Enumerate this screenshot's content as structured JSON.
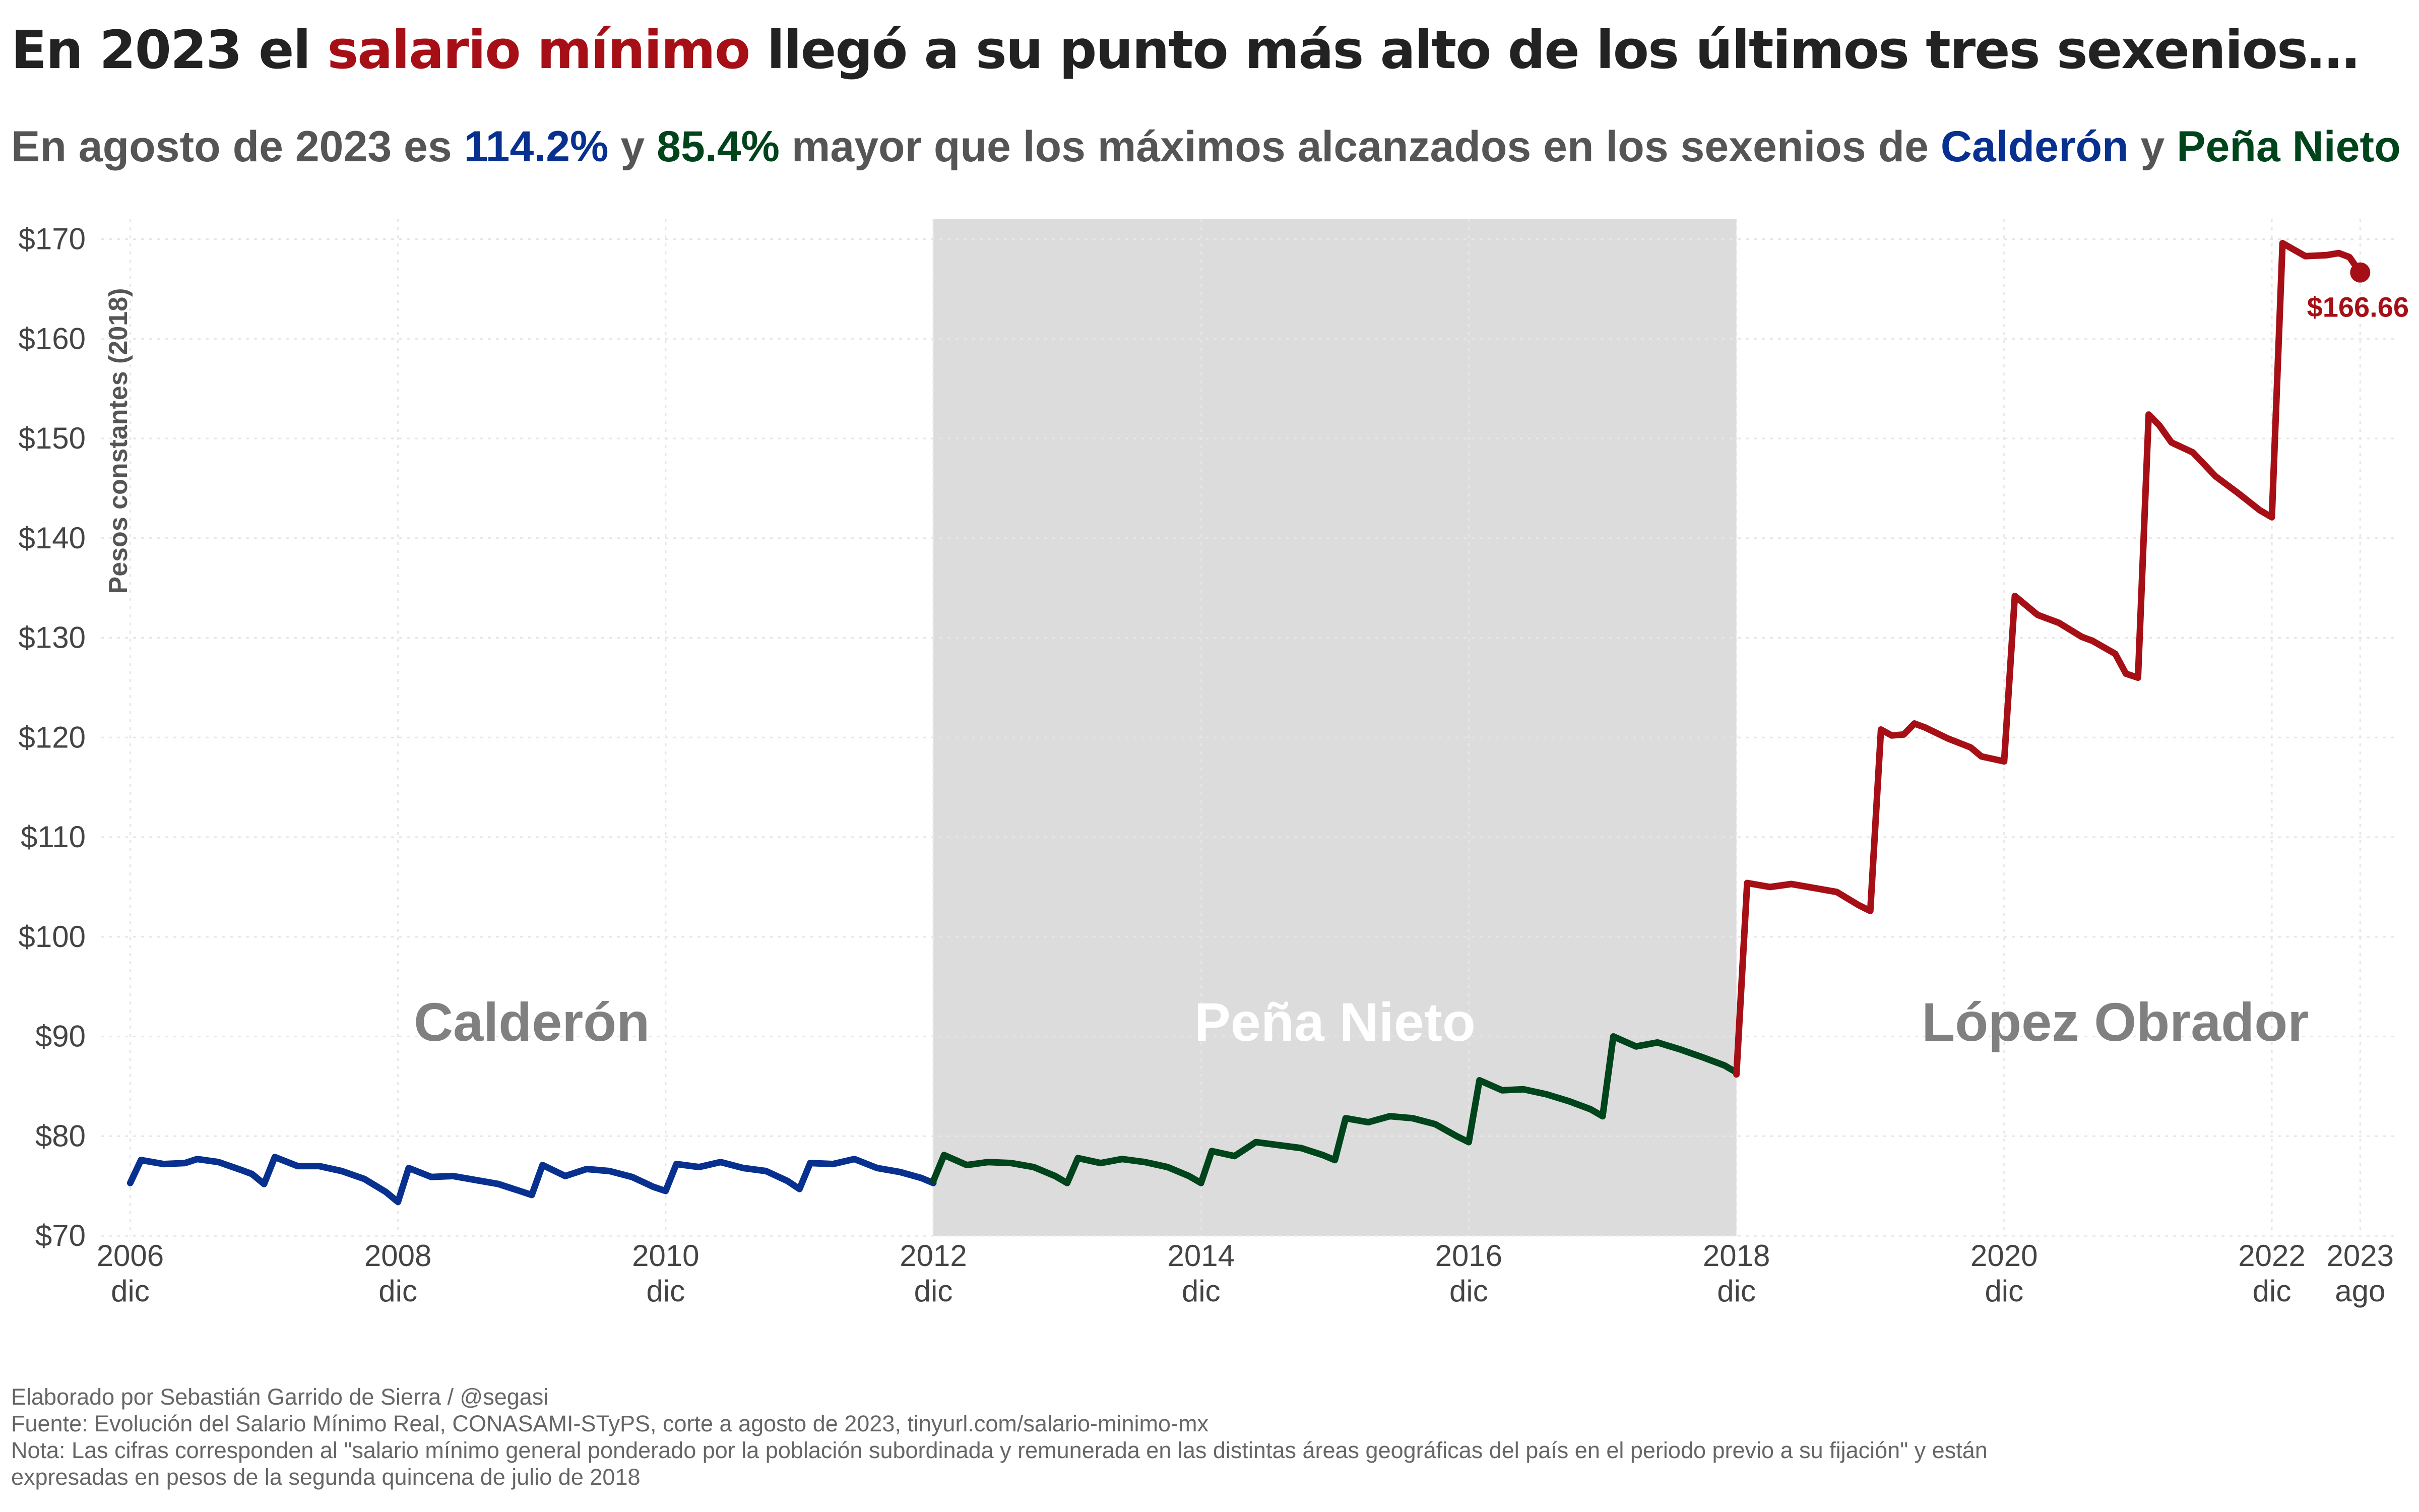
{
  "title": {
    "prefix": "En 2023 el ",
    "highlight": "salario mínimo",
    "suffix": " llegó a su punto más alto de los últimos tres sexenios…",
    "highlight_color": "#a50f15"
  },
  "subtitle": {
    "p1": "En agosto de 2023 es ",
    "pct_calderon": "114.2%",
    "p2": " y ",
    "pct_pena": "85.4%",
    "p3": " mayor que los máximos alcanzados en los sexenios de ",
    "name_calderon": "Calderón",
    "p4": " y ",
    "name_pena": "Peña Nieto"
  },
  "footer": {
    "credit": "Elaborado por Sebastián Garrido de Sierra / @segasi",
    "source": "Fuente: Evolución del Salario Mínimo Real, CONASAMI-STyPS, corte a agosto de 2023, tinyurl.com/salario-minimo-mx",
    "note1": "Nota: Las cifras corresponden al \"salario mínimo general ponderado por la población subordinada y remunerada en las distintas áreas geográficas del país en el periodo previo a su fijación\" y están",
    "note2": "expresadas en pesos de la segunda quincena de julio de 2018"
  },
  "chart_data": {
    "type": "line",
    "ylabel": "Pesos constantes (2018)",
    "ylim": [
      70,
      172
    ],
    "xlim": [
      2006.7,
      2023.85
    ],
    "y_ticks": [
      70,
      80,
      90,
      100,
      110,
      120,
      130,
      140,
      150,
      160,
      170
    ],
    "y_tick_labels": [
      "$70",
      "$80",
      "$90",
      "$100",
      "$110",
      "$120",
      "$130",
      "$140",
      "$150",
      "$160",
      "$170"
    ],
    "x_ticks": [
      {
        "x": 2006.92,
        "top": "2006",
        "bottom": "dic"
      },
      {
        "x": 2008.92,
        "top": "2008",
        "bottom": "dic"
      },
      {
        "x": 2010.92,
        "top": "2010",
        "bottom": "dic"
      },
      {
        "x": 2012.92,
        "top": "2012",
        "bottom": "dic"
      },
      {
        "x": 2014.92,
        "top": "2014",
        "bottom": "dic"
      },
      {
        "x": 2016.92,
        "top": "2016",
        "bottom": "dic"
      },
      {
        "x": 2018.92,
        "top": "2018",
        "bottom": "dic"
      },
      {
        "x": 2020.92,
        "top": "2020",
        "bottom": "dic"
      },
      {
        "x": 2022.92,
        "top": "2022",
        "bottom": "dic"
      },
      {
        "x": 2023.58,
        "top": "2023",
        "bottom": "ago"
      }
    ],
    "grid": true,
    "shaded_period": {
      "from": 2012.92,
      "to": 2018.92,
      "color": "#dcdcdc"
    },
    "period_labels": [
      {
        "text": "Calderón",
        "x": 2009.92,
        "y": 91.5,
        "color": "#808080"
      },
      {
        "text": "Peña Nieto",
        "x": 2015.92,
        "y": 91.5,
        "color": "#ffffff"
      },
      {
        "text": "López Obrador",
        "x": 2021.75,
        "y": 91.5,
        "color": "#808080"
      }
    ],
    "series": [
      {
        "name": "Calderón",
        "color": "#08308f",
        "points": [
          [
            2006.92,
            75.3
          ],
          [
            2007.0,
            77.6
          ],
          [
            2007.17,
            77.2
          ],
          [
            2007.33,
            77.3
          ],
          [
            2007.42,
            77.7
          ],
          [
            2007.58,
            77.4
          ],
          [
            2007.75,
            76.6
          ],
          [
            2007.83,
            76.2
          ],
          [
            2007.92,
            75.2
          ],
          [
            2008.0,
            77.9
          ],
          [
            2008.17,
            77.0
          ],
          [
            2008.33,
            77.0
          ],
          [
            2008.5,
            76.5
          ],
          [
            2008.67,
            75.7
          ],
          [
            2008.83,
            74.4
          ],
          [
            2008.92,
            73.4
          ],
          [
            2009.0,
            76.8
          ],
          [
            2009.17,
            75.9
          ],
          [
            2009.33,
            76.0
          ],
          [
            2009.5,
            75.6
          ],
          [
            2009.67,
            75.2
          ],
          [
            2009.83,
            74.5
          ],
          [
            2009.92,
            74.1
          ],
          [
            2010.0,
            77.1
          ],
          [
            2010.17,
            76.0
          ],
          [
            2010.33,
            76.7
          ],
          [
            2010.5,
            76.5
          ],
          [
            2010.67,
            75.9
          ],
          [
            2010.83,
            74.9
          ],
          [
            2010.92,
            74.5
          ],
          [
            2011.0,
            77.2
          ],
          [
            2011.17,
            76.9
          ],
          [
            2011.33,
            77.4
          ],
          [
            2011.5,
            76.8
          ],
          [
            2011.67,
            76.5
          ],
          [
            2011.83,
            75.5
          ],
          [
            2011.92,
            74.7
          ],
          [
            2012.0,
            77.3
          ],
          [
            2012.17,
            77.2
          ],
          [
            2012.33,
            77.7
          ],
          [
            2012.5,
            76.8
          ],
          [
            2012.67,
            76.4
          ],
          [
            2012.83,
            75.8
          ],
          [
            2012.92,
            75.3
          ]
        ]
      },
      {
        "name": "Peña Nieto",
        "color": "#00441b",
        "points": [
          [
            2012.92,
            75.5
          ],
          [
            2013.0,
            78.1
          ],
          [
            2013.17,
            77.1
          ],
          [
            2013.33,
            77.4
          ],
          [
            2013.5,
            77.3
          ],
          [
            2013.67,
            76.9
          ],
          [
            2013.83,
            76.0
          ],
          [
            2013.92,
            75.3
          ],
          [
            2014.0,
            77.8
          ],
          [
            2014.17,
            77.3
          ],
          [
            2014.33,
            77.7
          ],
          [
            2014.5,
            77.4
          ],
          [
            2014.67,
            76.9
          ],
          [
            2014.83,
            76.0
          ],
          [
            2014.92,
            75.3
          ],
          [
            2015.0,
            78.5
          ],
          [
            2015.17,
            78.0
          ],
          [
            2015.33,
            79.4
          ],
          [
            2015.5,
            79.1
          ],
          [
            2015.67,
            78.8
          ],
          [
            2015.83,
            78.1
          ],
          [
            2015.92,
            77.6
          ],
          [
            2016.0,
            81.8
          ],
          [
            2016.17,
            81.4
          ],
          [
            2016.33,
            82.0
          ],
          [
            2016.5,
            81.8
          ],
          [
            2016.67,
            81.2
          ],
          [
            2016.83,
            80.0
          ],
          [
            2016.92,
            79.4
          ],
          [
            2017.0,
            85.6
          ],
          [
            2017.17,
            84.6
          ],
          [
            2017.33,
            84.7
          ],
          [
            2017.5,
            84.2
          ],
          [
            2017.67,
            83.5
          ],
          [
            2017.83,
            82.7
          ],
          [
            2017.92,
            82.0
          ],
          [
            2018.0,
            90.0
          ],
          [
            2018.17,
            89.0
          ],
          [
            2018.33,
            89.4
          ],
          [
            2018.5,
            88.7
          ],
          [
            2018.67,
            87.9
          ],
          [
            2018.83,
            87.1
          ],
          [
            2018.92,
            86.4
          ]
        ]
      },
      {
        "name": "López Obrador",
        "color": "#a50f15",
        "points": [
          [
            2018.92,
            86.2
          ],
          [
            2019.0,
            105.4
          ],
          [
            2019.17,
            105.0
          ],
          [
            2019.33,
            105.3
          ],
          [
            2019.5,
            104.9
          ],
          [
            2019.67,
            104.5
          ],
          [
            2019.83,
            103.2
          ],
          [
            2019.92,
            102.6
          ],
          [
            2020.0,
            120.8
          ],
          [
            2020.08,
            120.2
          ],
          [
            2020.17,
            120.3
          ],
          [
            2020.25,
            121.4
          ],
          [
            2020.33,
            121.0
          ],
          [
            2020.5,
            119.9
          ],
          [
            2020.67,
            119.0
          ],
          [
            2020.75,
            118.1
          ],
          [
            2020.92,
            117.6
          ],
          [
            2021.0,
            134.2
          ],
          [
            2021.17,
            132.3
          ],
          [
            2021.33,
            131.5
          ],
          [
            2021.5,
            130.1
          ],
          [
            2021.58,
            129.7
          ],
          [
            2021.75,
            128.4
          ],
          [
            2021.83,
            126.4
          ],
          [
            2021.92,
            126.0
          ],
          [
            2022.0,
            152.4
          ],
          [
            2022.08,
            151.3
          ],
          [
            2022.17,
            149.6
          ],
          [
            2022.33,
            148.6
          ],
          [
            2022.5,
            146.2
          ],
          [
            2022.67,
            144.5
          ],
          [
            2022.83,
            142.8
          ],
          [
            2022.92,
            142.1
          ],
          [
            2023.0,
            169.6
          ],
          [
            2023.17,
            168.3
          ],
          [
            2023.33,
            168.4
          ],
          [
            2023.42,
            168.6
          ],
          [
            2023.5,
            168.2
          ],
          [
            2023.58,
            166.66
          ]
        ]
      }
    ],
    "end_point": {
      "x": 2023.58,
      "y": 166.66,
      "label": "$166.66",
      "color": "#a50f15"
    }
  }
}
